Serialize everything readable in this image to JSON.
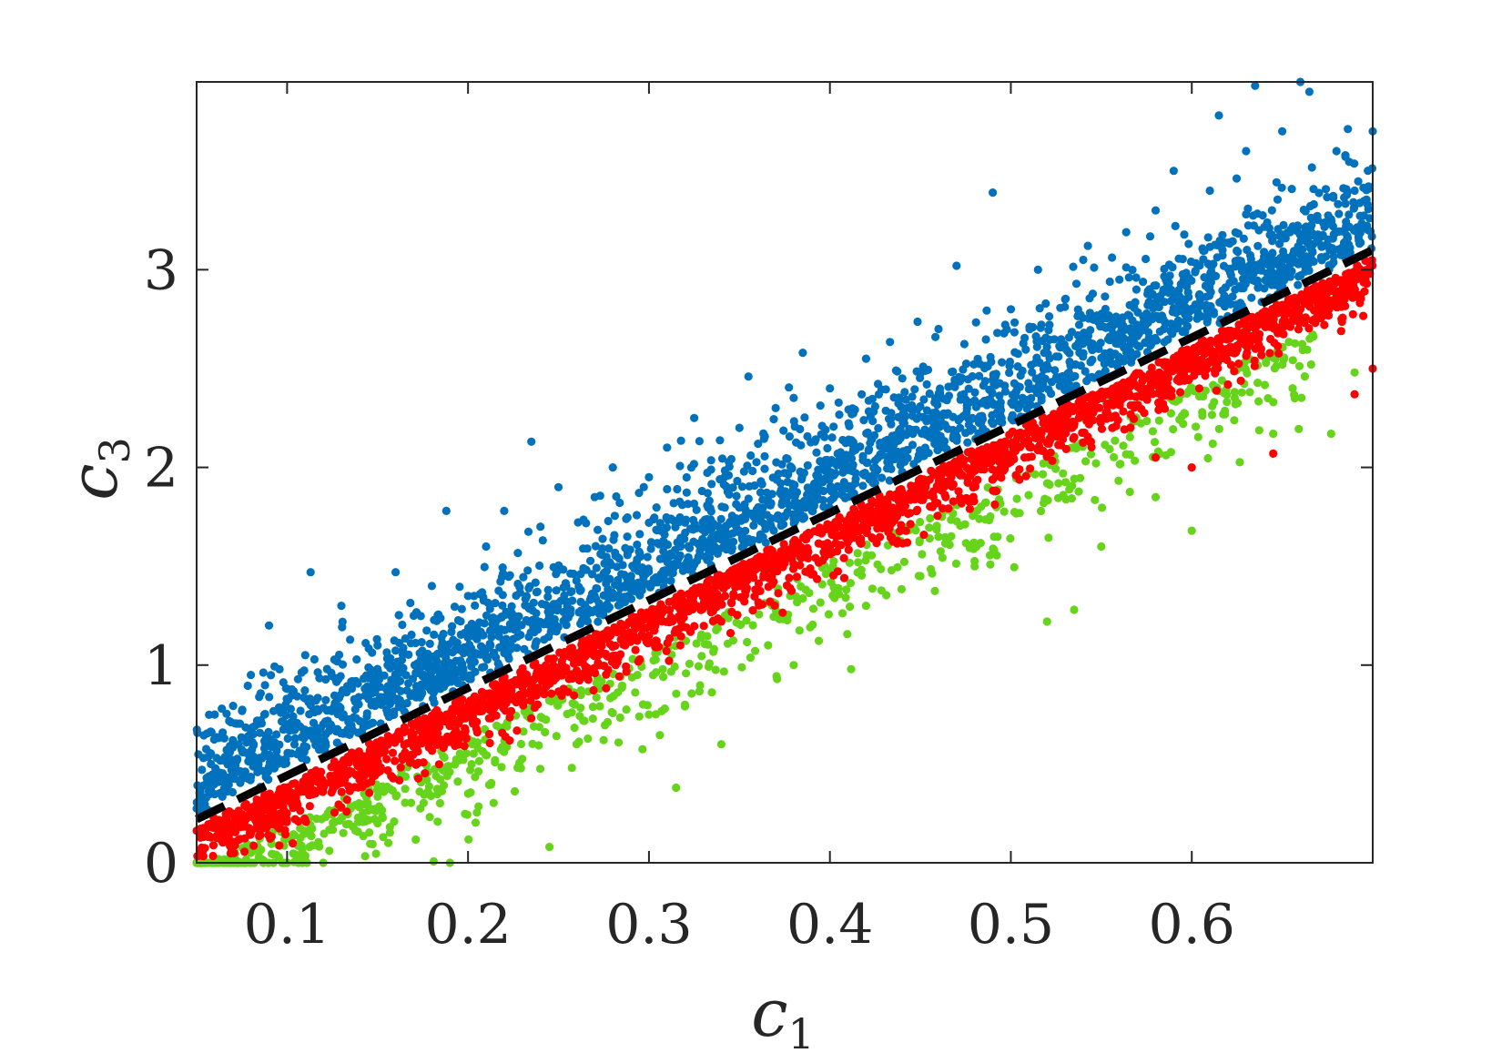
{
  "chart_data": {
    "type": "scatter",
    "xlabel": "c",
    "xlabel_subscript": "1",
    "ylabel": "c",
    "ylabel_subscript": "3",
    "xlim": [
      0.05,
      0.7
    ],
    "ylim": [
      0,
      3.95
    ],
    "xticks": [
      0.1,
      0.2,
      0.3,
      0.4,
      0.5,
      0.6
    ],
    "xtick_labels": [
      "0.1",
      "0.2",
      "0.3",
      "0.4",
      "0.5",
      "0.6"
    ],
    "yticks": [
      0,
      1,
      2,
      3
    ],
    "ytick_labels": [
      "0",
      "1",
      "2",
      "3"
    ],
    "grid": false,
    "legend": "none",
    "box": true,
    "colors": {
      "blue": "#0072BD",
      "red": "#FF0000",
      "green": "#66D41A",
      "line": "#000000",
      "axis": "#262626"
    },
    "reference_line": {
      "style": "dashed",
      "color": "#000000",
      "points": [
        [
          0.05,
          0.22
        ],
        [
          0.7,
          3.1
        ]
      ]
    },
    "series": [
      {
        "color": "#0072BD",
        "description_free": true,
        "points": [
          [
            0.06,
            0.75
          ],
          [
            0.07,
            0.62
          ],
          [
            0.08,
            0.95
          ],
          [
            0.09,
            1.2
          ],
          [
            0.1,
            0.88
          ],
          [
            0.11,
            1.05
          ],
          [
            0.12,
            0.7
          ],
          [
            0.113,
            1.47
          ],
          [
            0.13,
            1.3
          ],
          [
            0.15,
            1.1
          ],
          [
            0.16,
            1.47
          ],
          [
            0.17,
            1.25
          ],
          [
            0.18,
            1.4
          ],
          [
            0.188,
            1.78
          ],
          [
            0.2,
            1.35
          ],
          [
            0.21,
            1.6
          ],
          [
            0.22,
            1.78
          ],
          [
            0.235,
            2.13
          ],
          [
            0.24,
            1.7
          ],
          [
            0.25,
            1.9
          ],
          [
            0.27,
            1.85
          ],
          [
            0.28,
            2.0
          ],
          [
            0.3,
            1.95
          ],
          [
            0.31,
            2.1
          ],
          [
            0.325,
            2.25
          ],
          [
            0.35,
            2.2
          ],
          [
            0.355,
            2.46
          ],
          [
            0.37,
            2.3
          ],
          [
            0.385,
            2.58
          ],
          [
            0.4,
            2.4
          ],
          [
            0.42,
            2.55
          ],
          [
            0.44,
            2.45
          ],
          [
            0.46,
            2.7
          ],
          [
            0.47,
            3.02
          ],
          [
            0.49,
            3.39
          ],
          [
            0.5,
            2.8
          ],
          [
            0.515,
            3.0
          ],
          [
            0.53,
            2.85
          ],
          [
            0.54,
            3.05
          ],
          [
            0.56,
            2.95
          ],
          [
            0.58,
            3.3
          ],
          [
            0.59,
            3.5
          ],
          [
            0.61,
            3.4
          ],
          [
            0.615,
            3.78
          ],
          [
            0.63,
            3.6
          ],
          [
            0.635,
            3.93
          ],
          [
            0.65,
            3.7
          ],
          [
            0.66,
            3.95
          ],
          [
            0.665,
            3.9
          ],
          [
            0.68,
            3.6
          ],
          [
            0.69,
            3.4
          ],
          [
            0.7,
            3.7
          ]
        ]
      },
      {
        "color": "#FF0000",
        "description_free": true,
        "points": [
          [
            0.06,
            0.18
          ],
          [
            0.1,
            0.35
          ],
          [
            0.15,
            0.55
          ],
          [
            0.2,
            0.75
          ],
          [
            0.25,
            0.95
          ],
          [
            0.3,
            1.15
          ],
          [
            0.35,
            1.4
          ],
          [
            0.4,
            1.6
          ],
          [
            0.45,
            1.85
          ],
          [
            0.5,
            2.05
          ],
          [
            0.55,
            2.35
          ],
          [
            0.58,
            2.05
          ],
          [
            0.6,
            2.0
          ],
          [
            0.62,
            2.6
          ],
          [
            0.645,
            2.07
          ],
          [
            0.66,
            2.8
          ],
          [
            0.69,
            2.37
          ],
          [
            0.7,
            2.5
          ]
        ]
      },
      {
        "color": "#66D41A",
        "description_free": true,
        "points": [
          [
            0.05,
            0.0
          ],
          [
            0.08,
            0.05
          ],
          [
            0.12,
            0.0
          ],
          [
            0.15,
            0.2
          ],
          [
            0.19,
            0.0
          ],
          [
            0.2,
            0.35
          ],
          [
            0.245,
            0.08
          ],
          [
            0.26,
            0.6
          ],
          [
            0.3,
            0.75
          ],
          [
            0.315,
            0.38
          ],
          [
            0.34,
            0.6
          ],
          [
            0.38,
            1.0
          ],
          [
            0.42,
            1.3
          ],
          [
            0.45,
            1.45
          ],
          [
            0.48,
            1.5
          ],
          [
            0.52,
            1.22
          ],
          [
            0.535,
            1.28
          ],
          [
            0.55,
            1.6
          ],
          [
            0.58,
            1.85
          ],
          [
            0.6,
            1.68
          ],
          [
            0.645,
            2.17
          ],
          [
            0.677,
            2.17
          ],
          [
            0.69,
            2.48
          ]
        ]
      }
    ]
  }
}
